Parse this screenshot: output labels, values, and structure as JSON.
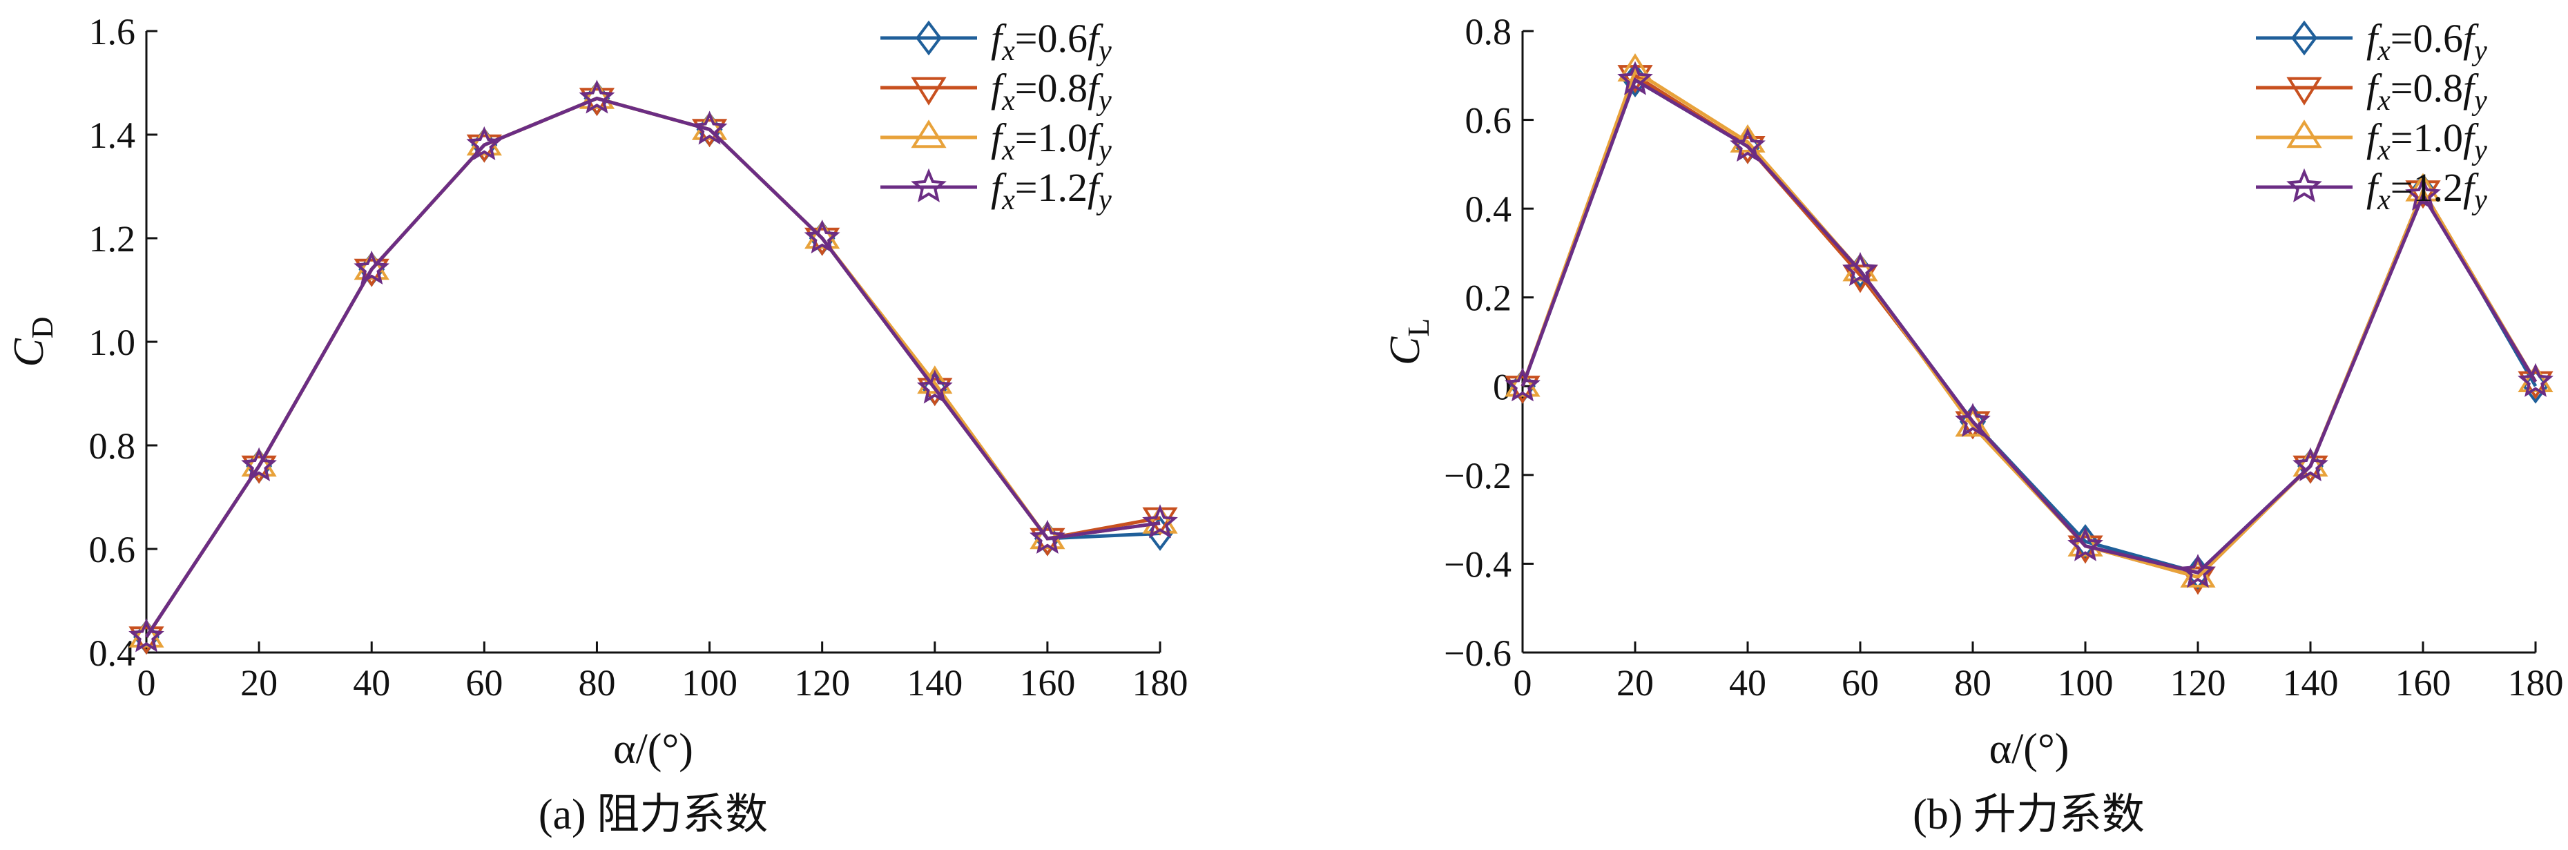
{
  "colors": {
    "series": [
      "#1f5f9a",
      "#c8501f",
      "#e8a23a",
      "#6b2d84"
    ],
    "axis": "#111111"
  },
  "chart_data": [
    {
      "type": "line",
      "caption": "(a) 阻力系数",
      "xlabel": "α/(°)",
      "ylabel": "C_D",
      "xlim": [
        0,
        180
      ],
      "ylim": [
        0.4,
        1.6
      ],
      "xticks": [
        "0",
        "20",
        "40",
        "60",
        "80",
        "100",
        "120",
        "140",
        "160",
        "180"
      ],
      "yticks": [
        "0.4",
        "0.6",
        "0.8",
        "1.0",
        "1.2",
        "1.4",
        "1.6"
      ],
      "legend_position": "top-right",
      "x": [
        0,
        20,
        40,
        60,
        80,
        100,
        120,
        140,
        160,
        180
      ],
      "series": [
        {
          "name": "fx=0.6fy",
          "marker": "diamond",
          "values": [
            0.43,
            0.76,
            1.14,
            1.38,
            1.47,
            1.41,
            1.2,
            0.91,
            0.62,
            0.63
          ]
        },
        {
          "name": "fx=0.8fy",
          "marker": "triangle-down",
          "values": [
            0.43,
            0.76,
            1.14,
            1.38,
            1.47,
            1.41,
            1.2,
            0.91,
            0.62,
            0.66
          ]
        },
        {
          "name": "fx=1.0fy",
          "marker": "triangle-up",
          "values": [
            0.43,
            0.76,
            1.14,
            1.38,
            1.47,
            1.41,
            1.2,
            0.92,
            0.62,
            0.65
          ]
        },
        {
          "name": "fx=1.2fy",
          "marker": "star",
          "values": [
            0.43,
            0.76,
            1.14,
            1.38,
            1.47,
            1.41,
            1.2,
            0.91,
            0.62,
            0.65
          ]
        }
      ]
    },
    {
      "type": "line",
      "caption": "(b) 升力系数",
      "xlabel": "α/(°)",
      "ylabel": "C_L",
      "xlim": [
        0,
        180
      ],
      "ylim": [
        -0.6,
        0.8
      ],
      "xticks": [
        "0",
        "20",
        "40",
        "60",
        "80",
        "100",
        "120",
        "140",
        "160",
        "180"
      ],
      "yticks": [
        "−0.6",
        "−0.4",
        "−0.2",
        "0",
        "0.2",
        "0.4",
        "0.6",
        "0.8"
      ],
      "legend_position": "top-right",
      "x": [
        0,
        20,
        40,
        60,
        80,
        100,
        120,
        140,
        160,
        180
      ],
      "series": [
        {
          "name": "fx=0.6fy",
          "marker": "diamond",
          "values": [
            0.0,
            0.69,
            0.54,
            0.26,
            -0.08,
            -0.35,
            -0.42,
            -0.18,
            0.44,
            0.0
          ]
        },
        {
          "name": "fx=0.8fy",
          "marker": "triangle-down",
          "values": [
            0.0,
            0.7,
            0.54,
            0.25,
            -0.08,
            -0.36,
            -0.43,
            -0.18,
            0.44,
            0.01
          ]
        },
        {
          "name": "fx=1.0fy",
          "marker": "triangle-up",
          "values": [
            0.0,
            0.71,
            0.55,
            0.26,
            -0.09,
            -0.36,
            -0.43,
            -0.18,
            0.44,
            0.01
          ]
        },
        {
          "name": "fx=1.2fy",
          "marker": "star",
          "values": [
            0.0,
            0.69,
            0.54,
            0.26,
            -0.08,
            -0.36,
            -0.42,
            -0.18,
            0.43,
            0.01
          ]
        }
      ]
    }
  ]
}
